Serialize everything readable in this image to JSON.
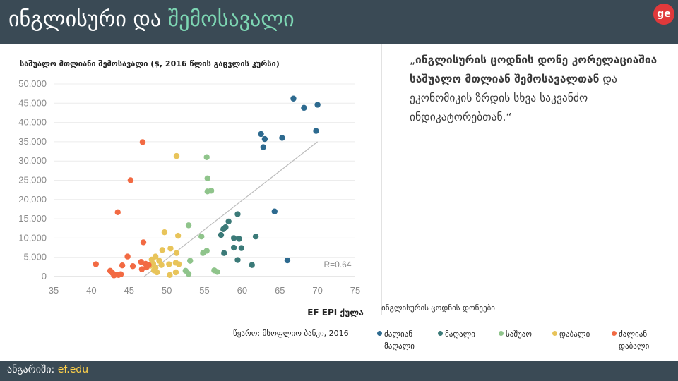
{
  "header": {
    "title_part1": "ინგლისური და ",
    "title_part2": "შემოსავალი",
    "logo_text": "ge"
  },
  "quote": {
    "open": "„",
    "bold": "ინგლისურის ცოდნის დონე კორელაციაშია საშუალო მთლიან შემოსავალთან",
    "rest": " და ეკონომიკის ზრდის სხვა საკვანძო ინდიკატორებთან.“"
  },
  "source": "წყარო: მსოფლიო ბანკი, 2016",
  "legend_title": "ინგლისურის ცოდნის დონეები",
  "legend": [
    {
      "label": "ძალიან მაღალი",
      "color": "#2d6a8f"
    },
    {
      "label": "მაღალი",
      "color": "#3b7a78"
    },
    {
      "label": "საშუაო",
      "color": "#8fc48b"
    },
    {
      "label": "დაბალი",
      "color": "#e8c45a"
    },
    {
      "label": "ძალიან დაბალი",
      "color": "#f26a43"
    }
  ],
  "footer": {
    "label": "ანგარიში: ",
    "link": "ef.edu"
  },
  "chart_data": {
    "type": "scatter",
    "title": "საშუალო მთლიანი შემოსავალი ($, 2016 წლის გაცვლის კურსი)",
    "xlabel": "EF EPI ქულა",
    "ylabel": "",
    "xlim": [
      35,
      75
    ],
    "ylim": [
      0,
      50000
    ],
    "x_ticks": [
      "35",
      "40",
      "45",
      "50",
      "55",
      "60",
      "65",
      "70",
      "75"
    ],
    "y_ticks": [
      "0",
      "5,000",
      "10,000",
      "15,000",
      "20,000",
      "25,000",
      "30,000",
      "35,000",
      "40,000",
      "45,000",
      "50,000"
    ],
    "annotation": "R=0.64",
    "trendline": {
      "x": [
        47.0,
        70.0
      ],
      "y": [
        0,
        35000
      ]
    },
    "grid": "horizontal",
    "series": [
      {
        "name": "ძალიან მაღალი",
        "color": "#2d6a8f",
        "points": [
          [
            66.8,
            46200
          ],
          [
            68.2,
            43800
          ],
          [
            70.0,
            44600
          ],
          [
            69.8,
            37800
          ],
          [
            62.5,
            37000
          ],
          [
            63.0,
            35700
          ],
          [
            62.8,
            33600
          ],
          [
            65.3,
            36000
          ],
          [
            64.3,
            16900
          ],
          [
            66.0,
            4200
          ]
        ]
      },
      {
        "name": "მაღალი",
        "color": "#3b7a78",
        "points": [
          [
            57.2,
            10800
          ],
          [
            57.5,
            12300
          ],
          [
            57.8,
            12800
          ],
          [
            58.2,
            14300
          ],
          [
            59.4,
            16200
          ],
          [
            58.9,
            10000
          ],
          [
            59.6,
            9800
          ],
          [
            61.8,
            10400
          ],
          [
            58.9,
            7500
          ],
          [
            59.9,
            7400
          ],
          [
            57.6,
            6100
          ],
          [
            59.4,
            4300
          ],
          [
            61.3,
            3000
          ]
        ]
      },
      {
        "name": "საშუაო",
        "color": "#8fc48b",
        "points": [
          [
            55.3,
            31000
          ],
          [
            55.4,
            25500
          ],
          [
            55.4,
            22100
          ],
          [
            55.9,
            22300
          ],
          [
            52.9,
            13300
          ],
          [
            54.6,
            10400
          ],
          [
            54.8,
            6100
          ],
          [
            55.3,
            6700
          ],
          [
            53.1,
            4100
          ],
          [
            56.3,
            1600
          ],
          [
            56.7,
            1200
          ],
          [
            52.5,
            1500
          ],
          [
            52.9,
            700
          ]
        ]
      },
      {
        "name": "დაბალი",
        "color": "#e8c45a",
        "points": [
          [
            51.3,
            31300
          ],
          [
            49.7,
            11500
          ],
          [
            51.5,
            10600
          ],
          [
            49.4,
            6900
          ],
          [
            50.5,
            7300
          ],
          [
            51.3,
            6100
          ],
          [
            48.0,
            4400
          ],
          [
            48.5,
            5200
          ],
          [
            49.0,
            4100
          ],
          [
            48.2,
            3300
          ],
          [
            49.3,
            3000
          ],
          [
            50.3,
            3200
          ],
          [
            51.2,
            3600
          ],
          [
            51.6,
            3200
          ],
          [
            48.5,
            2300
          ],
          [
            48.3,
            1600
          ],
          [
            48.7,
            1100
          ],
          [
            50.4,
            400
          ],
          [
            51.2,
            1100
          ],
          [
            47.8,
            2800
          ]
        ]
      },
      {
        "name": "ძალიან დაბალი",
        "color": "#f26a43",
        "points": [
          [
            46.8,
            34900
          ],
          [
            45.2,
            25000
          ],
          [
            43.5,
            16700
          ],
          [
            46.9,
            8900
          ],
          [
            44.8,
            5200
          ],
          [
            46.6,
            3800
          ],
          [
            47.2,
            3300
          ],
          [
            47.6,
            3000
          ],
          [
            47.3,
            2400
          ],
          [
            46.7,
            1900
          ],
          [
            45.5,
            2700
          ],
          [
            44.1,
            2900
          ],
          [
            40.6,
            3200
          ],
          [
            42.5,
            1500
          ],
          [
            42.8,
            900
          ],
          [
            43.2,
            500
          ],
          [
            43.6,
            400
          ],
          [
            43.9,
            600
          ],
          [
            43.0,
            300
          ]
        ]
      }
    ]
  }
}
